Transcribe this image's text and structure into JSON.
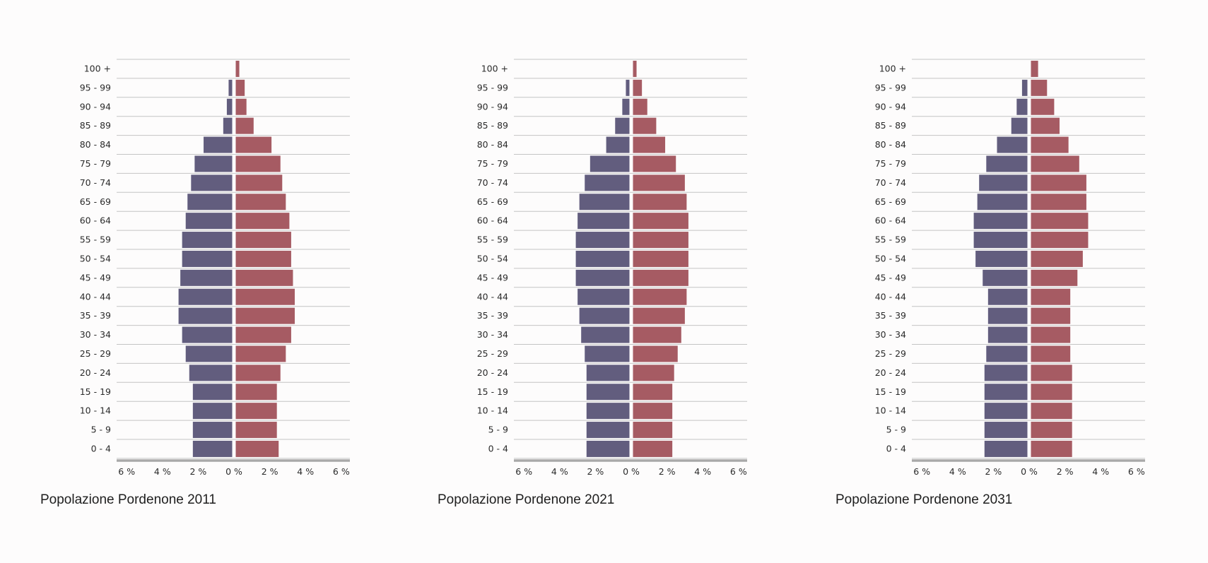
{
  "colors": {
    "male": "#625d7e",
    "female": "#a65b63",
    "grid": "#c4c4c4",
    "axis": "#a9a9a9"
  },
  "chart_data": [
    {
      "type": "bar",
      "title": "Popolazione Pordenone 2011",
      "categories": [
        "100 +",
        "95 - 99",
        "90 - 94",
        "85 - 89",
        "80 - 84",
        "75 - 79",
        "70 - 74",
        "65 - 69",
        "60 - 64",
        "55 - 59",
        "50 - 54",
        "45 - 49",
        "40 - 44",
        "35 - 39",
        "30 - 34",
        "25 - 29",
        "20 - 24",
        "15 - 19",
        "10 - 14",
        "5 - 9",
        "0 - 4"
      ],
      "series": [
        {
          "values": [
            0.0,
            0.2,
            0.3,
            0.5,
            1.6,
            2.1,
            2.3,
            2.5,
            2.6,
            2.8,
            2.8,
            2.9,
            3.0,
            3.0,
            2.8,
            2.6,
            2.4,
            2.2,
            2.2,
            2.2,
            2.2
          ]
        },
        {
          "values": [
            0.2,
            0.5,
            0.6,
            1.0,
            2.0,
            2.5,
            2.6,
            2.8,
            3.0,
            3.1,
            3.1,
            3.2,
            3.3,
            3.3,
            3.1,
            2.8,
            2.5,
            2.3,
            2.3,
            2.3,
            2.4
          ]
        }
      ],
      "x_ticks": [
        "6 %",
        "4 %",
        "2 %",
        "0 %",
        "2 %",
        "4 %",
        "6 %"
      ],
      "xlim": [
        -6.5,
        6.5
      ]
    },
    {
      "type": "bar",
      "title": "Popolazione Pordenone 2021",
      "categories": [
        "100 +",
        "95 - 99",
        "90 - 94",
        "85 - 89",
        "80 - 84",
        "75 - 79",
        "70 - 74",
        "65 - 69",
        "60 - 64",
        "55 - 59",
        "50 - 54",
        "45 - 49",
        "40 - 44",
        "35 - 39",
        "30 - 34",
        "25 - 29",
        "20 - 24",
        "15 - 19",
        "10 - 14",
        "5 - 9",
        "0 - 4"
      ],
      "series": [
        {
          "values": [
            0.0,
            0.2,
            0.4,
            0.8,
            1.3,
            2.2,
            2.5,
            2.8,
            2.9,
            3.0,
            3.0,
            3.0,
            2.9,
            2.8,
            2.7,
            2.5,
            2.4,
            2.4,
            2.4,
            2.4,
            2.4
          ]
        },
        {
          "values": [
            0.2,
            0.5,
            0.8,
            1.3,
            1.8,
            2.4,
            2.9,
            3.0,
            3.1,
            3.1,
            3.1,
            3.1,
            3.0,
            2.9,
            2.7,
            2.5,
            2.3,
            2.2,
            2.2,
            2.2,
            2.2
          ]
        }
      ],
      "x_ticks": [
        "6 %",
        "4 %",
        "2 %",
        "0 %",
        "2 %",
        "4 %",
        "6 %"
      ],
      "xlim": [
        -6.5,
        6.5
      ]
    },
    {
      "type": "bar",
      "title": "Popolazione Pordenone 2031",
      "categories": [
        "100 +",
        "95 - 99",
        "90 - 94",
        "85 - 89",
        "80 - 84",
        "75 - 79",
        "70 - 74",
        "65 - 69",
        "60 - 64",
        "55 - 59",
        "50 - 54",
        "45 - 49",
        "40 - 44",
        "35 - 39",
        "30 - 34",
        "25 - 29",
        "20 - 24",
        "15 - 19",
        "10 - 14",
        "5 - 9",
        "0 - 4"
      ],
      "series": [
        {
          "values": [
            0.0,
            0.3,
            0.6,
            0.9,
            1.7,
            2.3,
            2.7,
            2.8,
            3.0,
            3.0,
            2.9,
            2.5,
            2.2,
            2.2,
            2.2,
            2.3,
            2.4,
            2.4,
            2.4,
            2.4,
            2.4
          ]
        },
        {
          "values": [
            0.4,
            0.9,
            1.3,
            1.6,
            2.1,
            2.7,
            3.1,
            3.1,
            3.2,
            3.2,
            2.9,
            2.6,
            2.2,
            2.2,
            2.2,
            2.2,
            2.3,
            2.3,
            2.3,
            2.3,
            2.3
          ]
        }
      ],
      "x_ticks": [
        "6 %",
        "4 %",
        "2 %",
        "0 %",
        "2 %",
        "4 %",
        "6 %"
      ],
      "xlim": [
        -6.5,
        6.5
      ]
    }
  ]
}
